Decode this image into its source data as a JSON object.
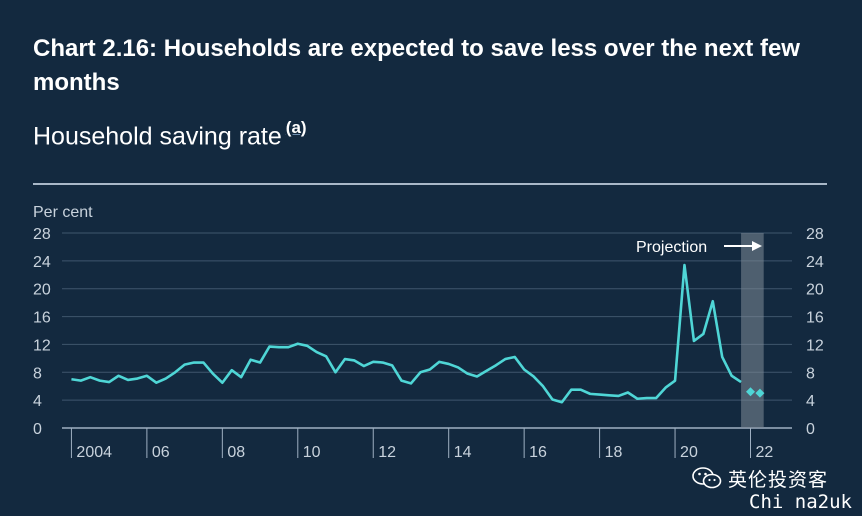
{
  "header": {
    "title": "Chart 2.16: Households are expected to save less over the next few months",
    "subtitle": "Household saving rate",
    "footnote_marker": "(a)"
  },
  "watermark": {
    "icon": "wechat-icon",
    "title": "英伦投资客",
    "subtitle": "Chi na2uk"
  },
  "colors": {
    "background": "#13293f",
    "line": "#4fd6d6",
    "axis_text": "#c8d2dc",
    "projection_band": "#7f8c98"
  },
  "chart_data": {
    "type": "line",
    "ylabel": "Per cent",
    "ylim": [
      0,
      28
    ],
    "yticks": [
      0,
      4,
      8,
      12,
      16,
      20,
      24,
      28
    ],
    "xlim": [
      2003.75,
      2023.1
    ],
    "xticks": [
      {
        "value": 2004,
        "label": "2004"
      },
      {
        "value": 2006,
        "label": "06"
      },
      {
        "value": 2008,
        "label": "08"
      },
      {
        "value": 2010,
        "label": "10"
      },
      {
        "value": 2012,
        "label": "12"
      },
      {
        "value": 2014,
        "label": "14"
      },
      {
        "value": 2016,
        "label": "16"
      },
      {
        "value": 2018,
        "label": "18"
      },
      {
        "value": 2020,
        "label": "20"
      },
      {
        "value": 2022,
        "label": "22"
      }
    ],
    "grid": true,
    "projection": {
      "label": "Projection",
      "start": 2021.75,
      "end": 2022.35
    },
    "series": [
      {
        "x": [
          2004.0,
          2004.25,
          2004.5,
          2004.75,
          2005.0,
          2005.25,
          2005.5,
          2005.75,
          2006.0,
          2006.25,
          2006.5,
          2006.75,
          2007.0,
          2007.25,
          2007.5,
          2007.75,
          2008.0,
          2008.25,
          2008.5,
          2008.75,
          2009.0,
          2009.25,
          2009.5,
          2009.75,
          2010.0,
          2010.25,
          2010.5,
          2010.75,
          2011.0,
          2011.25,
          2011.5,
          2011.75,
          2012.0,
          2012.25,
          2012.5,
          2012.75,
          2013.0,
          2013.25,
          2013.5,
          2013.75,
          2014.0,
          2014.25,
          2014.5,
          2014.75,
          2015.0,
          2015.25,
          2015.5,
          2015.75,
          2016.0,
          2016.25,
          2016.5,
          2016.75,
          2017.0,
          2017.25,
          2017.5,
          2017.75,
          2018.0,
          2018.25,
          2018.5,
          2018.75,
          2019.0,
          2019.25,
          2019.5,
          2019.75,
          2020.0,
          2020.25,
          2020.5,
          2020.75,
          2021.0,
          2021.25,
          2021.5,
          2021.75
        ],
        "values": [
          7.0,
          6.8,
          7.3,
          6.8,
          6.6,
          7.5,
          6.9,
          7.1,
          7.5,
          6.5,
          7.1,
          8.0,
          9.1,
          9.4,
          9.4,
          7.8,
          6.5,
          8.3,
          7.3,
          9.8,
          9.4,
          11.7,
          11.6,
          11.6,
          12.1,
          11.8,
          10.9,
          10.3,
          8.0,
          9.9,
          9.7,
          8.9,
          9.5,
          9.4,
          9.0,
          6.8,
          6.4,
          8.0,
          8.4,
          9.5,
          9.2,
          8.7,
          7.8,
          7.4,
          8.2,
          9.0,
          9.9,
          10.2,
          8.4,
          7.4,
          6.0,
          4.1,
          3.7,
          5.5,
          5.5,
          4.9,
          4.8,
          4.7,
          4.6,
          5.1,
          4.2,
          4.3,
          4.3,
          5.8,
          6.8,
          23.4,
          12.5,
          13.5,
          18.2,
          10.2,
          7.5,
          6.6
        ]
      },
      {
        "x": [
          2022.0,
          2022.25
        ],
        "values": [
          5.2,
          5.0
        ],
        "marker": "diamond"
      }
    ]
  }
}
